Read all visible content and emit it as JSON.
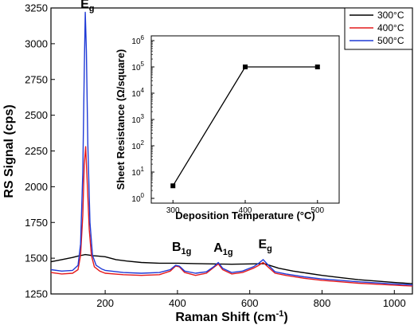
{
  "chart_data": [
    {
      "type": "line",
      "xlabel": "Raman Shift (cm",
      "xlabel_sup": "-1",
      "xlabel_end": ")",
      "ylabel": "RS Signal (cps)",
      "xlim": [
        50,
        1050
      ],
      "ylim": [
        1250,
        3250
      ],
      "xticks": [
        "200",
        "400",
        "600",
        "800",
        "1000"
      ],
      "yticks": [
        "1250",
        "1500",
        "1750",
        "2000",
        "2250",
        "2500",
        "2750",
        "3000",
        "3250"
      ],
      "legend_position": "top-right",
      "peaks": [
        {
          "base": "E",
          "sub": "g",
          "x": 145,
          "y": 3205
        },
        {
          "base": "B",
          "sub": "1g",
          "x": 398,
          "y": 1505
        },
        {
          "base": "A",
          "sub": "1g",
          "x": 513,
          "y": 1500
        },
        {
          "base": "E",
          "sub": "g",
          "x": 637,
          "y": 1525
        }
      ],
      "series": [
        {
          "name": "300°C",
          "color": "#000000",
          "x": [
            50,
            80,
            110,
            125,
            135,
            145,
            155,
            165,
            180,
            200,
            230,
            260,
            300,
            350,
            400,
            450,
            500,
            550,
            600,
            640,
            680,
            720,
            760,
            800,
            850,
            900,
            950,
            1000,
            1050
          ],
          "y": [
            1475,
            1490,
            1505,
            1515,
            1520,
            1525,
            1522,
            1518,
            1515,
            1510,
            1490,
            1480,
            1470,
            1465,
            1465,
            1462,
            1460,
            1458,
            1460,
            1462,
            1430,
            1410,
            1395,
            1380,
            1365,
            1350,
            1340,
            1330,
            1322
          ]
        },
        {
          "name": "400°C",
          "color": "#e41a1c",
          "x": [
            50,
            80,
            110,
            125,
            132,
            138,
            142,
            146,
            150,
            156,
            162,
            170,
            185,
            200,
            250,
            300,
            350,
            380,
            395,
            405,
            420,
            450,
            480,
            500,
            513,
            525,
            550,
            580,
            610,
            625,
            637,
            650,
            670,
            700,
            750,
            800,
            850,
            900,
            1000,
            1050
          ],
          "y": [
            1400,
            1390,
            1395,
            1420,
            1520,
            1800,
            2150,
            2280,
            2050,
            1700,
            1520,
            1440,
            1410,
            1395,
            1385,
            1380,
            1385,
            1410,
            1445,
            1440,
            1400,
            1380,
            1395,
            1435,
            1460,
            1420,
            1390,
            1400,
            1430,
            1450,
            1470,
            1440,
            1395,
            1380,
            1360,
            1345,
            1335,
            1325,
            1312,
            1305
          ]
        },
        {
          "name": "500°C",
          "color": "#1f3ad6",
          "x": [
            50,
            80,
            110,
            125,
            132,
            138,
            142,
            145,
            148,
            152,
            158,
            165,
            175,
            190,
            200,
            250,
            300,
            350,
            380,
            395,
            405,
            420,
            450,
            480,
            500,
            513,
            525,
            550,
            580,
            610,
            625,
            637,
            650,
            670,
            700,
            750,
            800,
            850,
            900,
            1000,
            1050
          ],
          "y": [
            1420,
            1410,
            1415,
            1450,
            1600,
            2100,
            2800,
            3220,
            2950,
            2300,
            1750,
            1520,
            1450,
            1425,
            1415,
            1400,
            1395,
            1400,
            1420,
            1450,
            1445,
            1410,
            1395,
            1405,
            1440,
            1470,
            1430,
            1400,
            1410,
            1440,
            1465,
            1490,
            1455,
            1405,
            1390,
            1370,
            1355,
            1345,
            1335,
            1320,
            1313
          ]
        }
      ]
    },
    {
      "type": "line",
      "xlabel": "Deposition Temperature (°C)",
      "ylabel": "Sheet Resistance (Ω/square)",
      "xlim": [
        270,
        530
      ],
      "xticks": [
        "300",
        "400",
        "500"
      ],
      "ylim_log10": [
        0,
        6
      ],
      "yticks": [
        {
          "base": "10",
          "exp": "0"
        },
        {
          "base": "10",
          "exp": "1"
        },
        {
          "base": "10",
          "exp": "2"
        },
        {
          "base": "10",
          "exp": "3"
        },
        {
          "base": "10",
          "exp": "4"
        },
        {
          "base": "10",
          "exp": "5"
        },
        {
          "base": "10",
          "exp": "6"
        }
      ],
      "series": [
        {
          "color": "#000000",
          "x": [
            300,
            400,
            500
          ],
          "y": [
            3,
            100000,
            100000
          ]
        }
      ]
    }
  ]
}
